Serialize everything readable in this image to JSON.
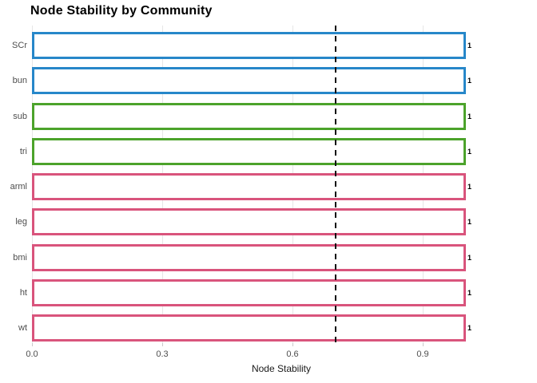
{
  "chart_data": {
    "type": "bar",
    "orientation": "horizontal",
    "title": "Node Stability by Community",
    "xlabel": "Node Stability",
    "x_ticks": [
      "0.0",
      "0.3",
      "0.6",
      "0.9"
    ],
    "x_tick_values": [
      0,
      0.3,
      0.6,
      0.9
    ],
    "xlim": [
      0,
      1.15
    ],
    "grid": "major-vertical-only",
    "legend_position": "none",
    "categories": [
      "SCr",
      "bun",
      "sub",
      "tri",
      "arml",
      "leg",
      "bmi",
      "ht",
      "wt"
    ],
    "values": [
      1,
      1,
      1,
      1,
      1,
      1,
      1,
      1,
      1
    ],
    "bar_labels": [
      "1",
      "1",
      "1",
      "1",
      "1",
      "1",
      "1",
      "1",
      "1"
    ],
    "communities": [
      1,
      1,
      2,
      2,
      3,
      3,
      3,
      3,
      3
    ],
    "community_colors": {
      "1": "#2787c9",
      "2": "#4ca32b",
      "3": "#d9547c"
    },
    "bar_fill": "#ffffff",
    "gridline_color": "#e6e6e6",
    "tick_color": "#c9c9c9",
    "tick_label_color": "#4d4d4d",
    "reference_line": {
      "value": 0.7,
      "style": "dashed",
      "color": "#111111"
    }
  }
}
